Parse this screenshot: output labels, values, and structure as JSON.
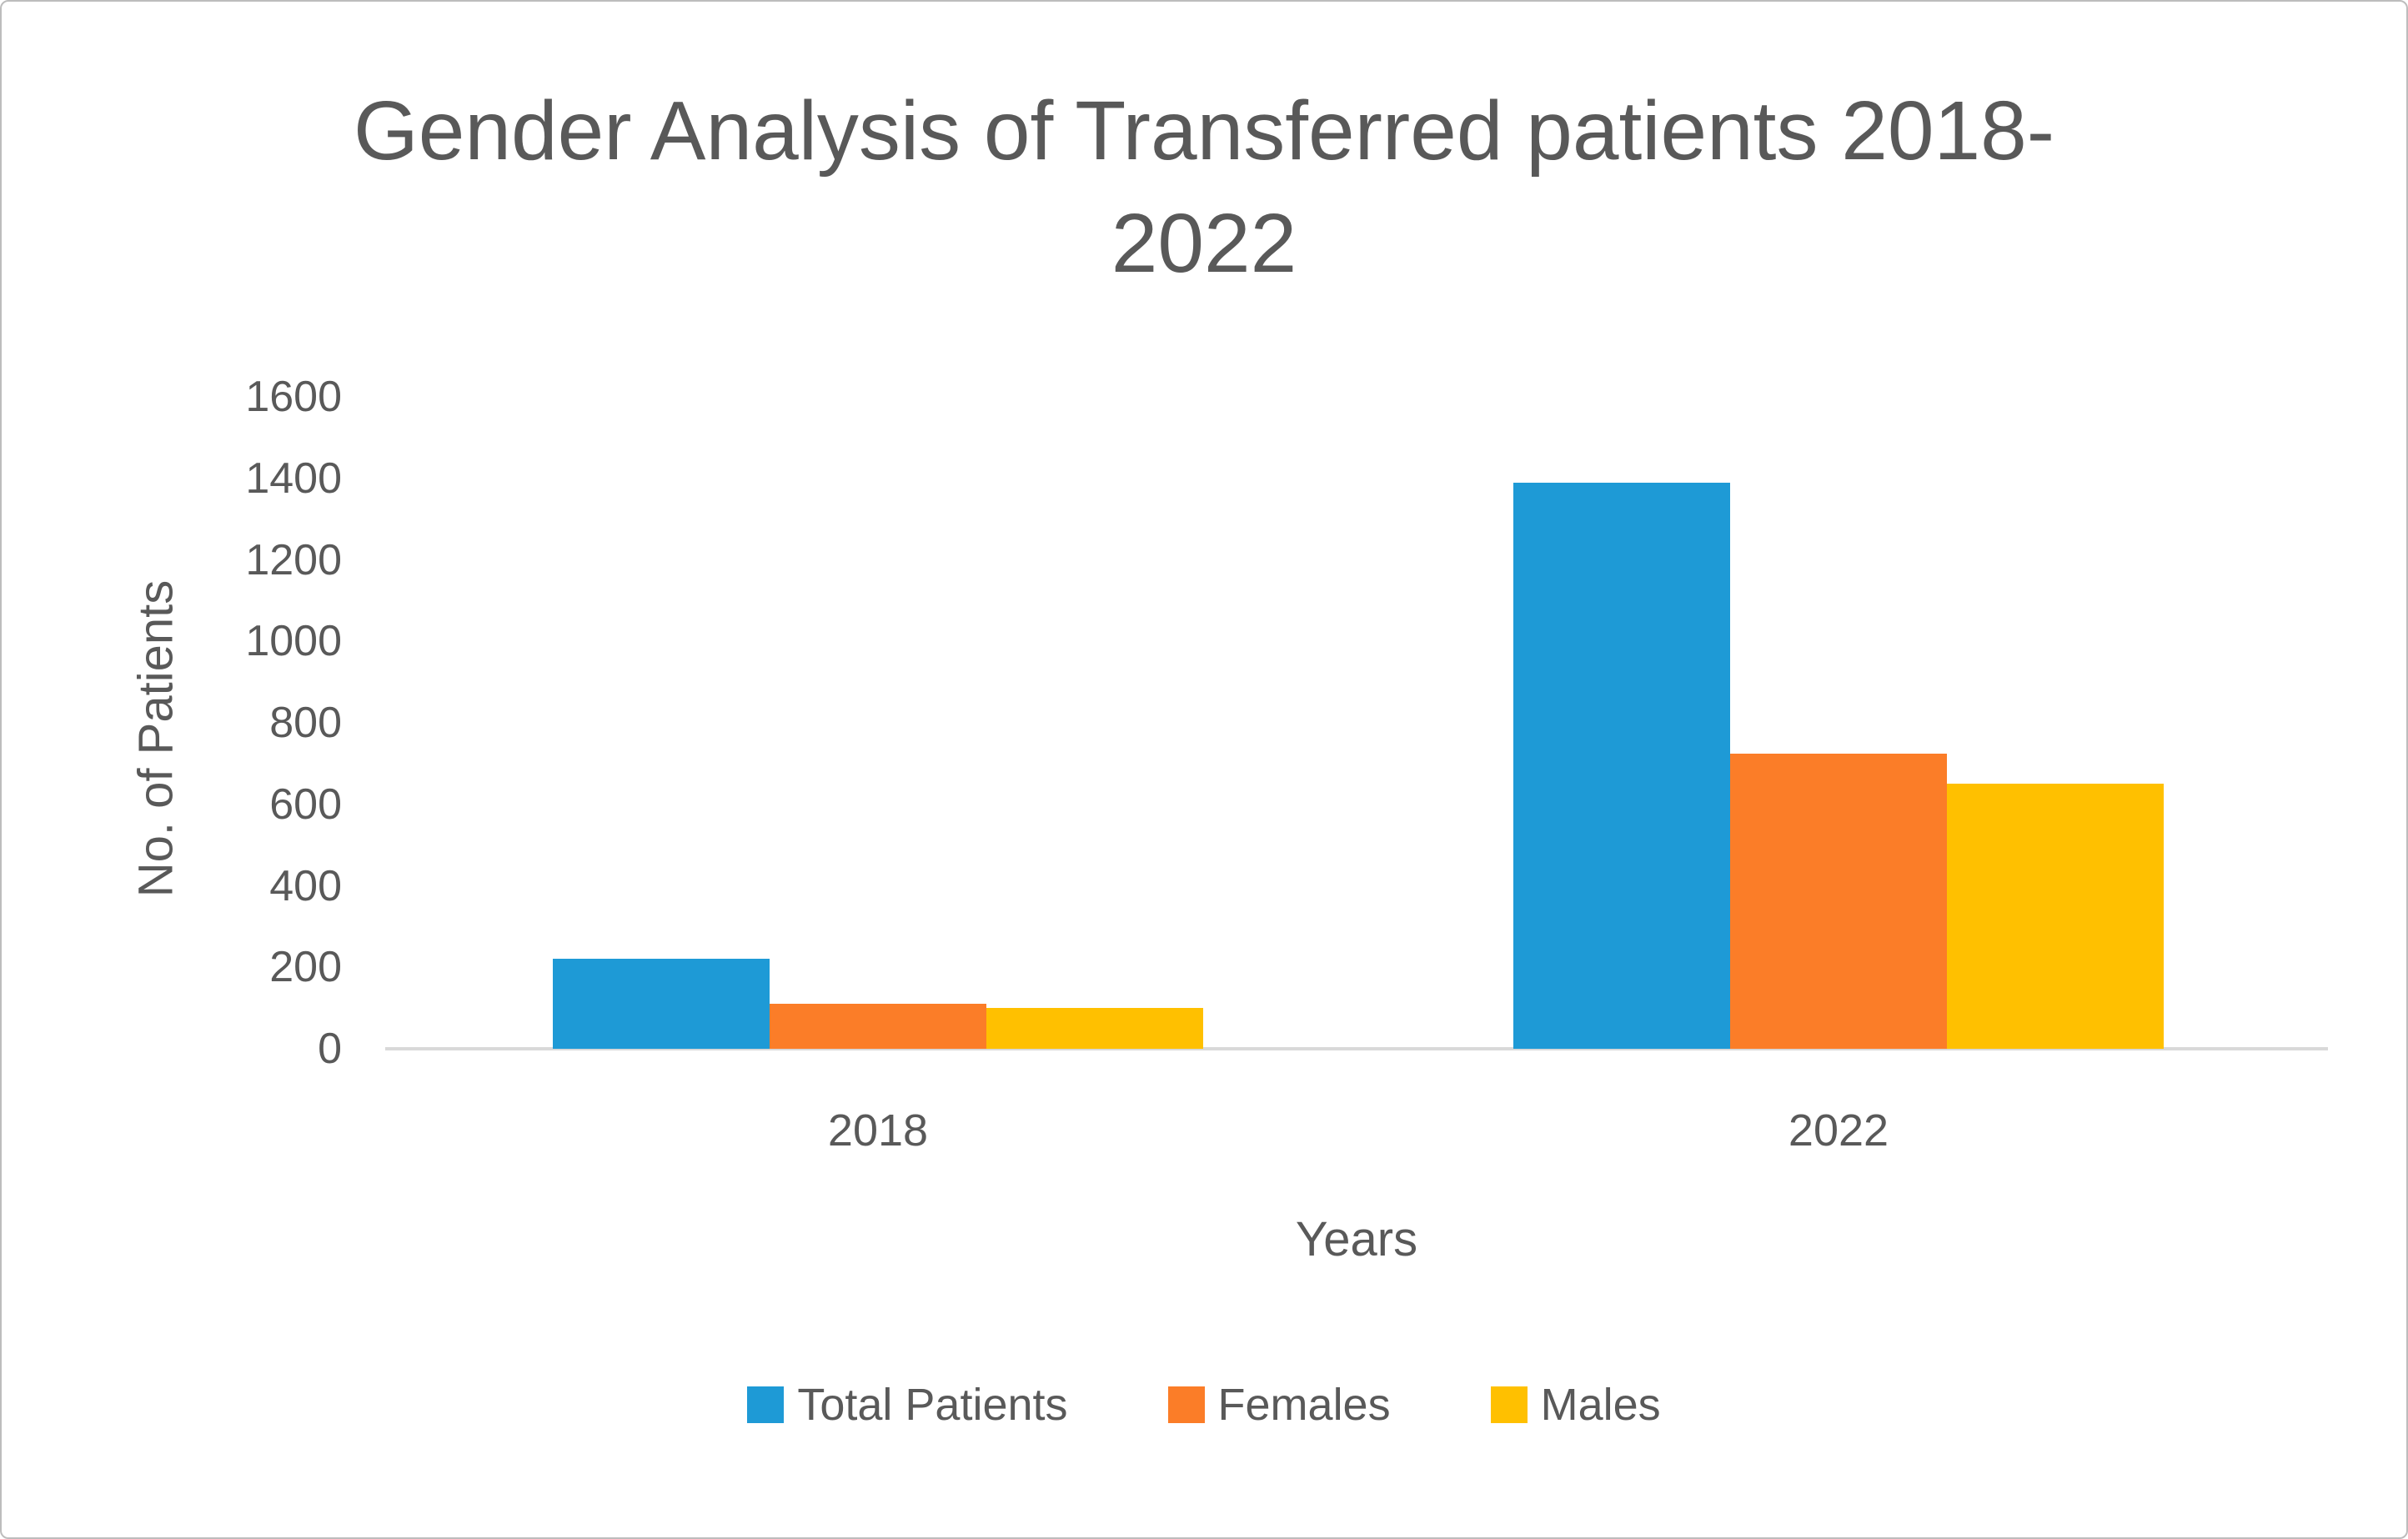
{
  "chart_data": {
    "type": "bar",
    "title": "Gender Analysis of Transferred patients 2018-2022",
    "title_lines": [
      "Gender Analysis of Transferred patients 2018-",
      "2022"
    ],
    "xlabel": "Years",
    "ylabel": "No. of Patients",
    "categories": [
      "2018",
      "2022"
    ],
    "series": [
      {
        "name": "Total Patients",
        "color": "#1E9AD6",
        "values": [
          220,
          1390
        ]
      },
      {
        "name": "Females",
        "color": "#FB7D28",
        "values": [
          110,
          725
        ]
      },
      {
        "name": "Males",
        "color": "#FFC000",
        "values": [
          100,
          650
        ]
      }
    ],
    "ylim": [
      0,
      1600
    ],
    "yticks": [
      0,
      200,
      400,
      600,
      800,
      1000,
      1200,
      1400,
      1600
    ],
    "grid": false,
    "legend_position": "bottom"
  },
  "colors": {
    "text": "#595959",
    "axis_line": "#D9D9D9",
    "frame_border": "#BDBDBD"
  }
}
